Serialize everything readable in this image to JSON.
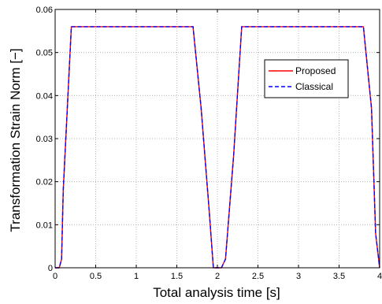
{
  "chart_data": {
    "type": "line",
    "xlabel": "Total analysis time [s]",
    "ylabel": "Transformation Strain Norm [−]",
    "xlim": [
      0,
      4
    ],
    "ylim": [
      0,
      0.06
    ],
    "xticks": [
      0,
      0.5,
      1,
      1.5,
      2,
      2.5,
      3,
      3.5,
      4
    ],
    "xtick_labels": [
      "0",
      "0.5",
      "1",
      "1.5",
      "2",
      "2.5",
      "3",
      "3.5",
      "4"
    ],
    "yticks": [
      0,
      0.01,
      0.02,
      0.03,
      0.04,
      0.05,
      0.06
    ],
    "ytick_labels": [
      "0",
      "0.01",
      "0.02",
      "0.03",
      "0.04",
      "0.05",
      "0.06"
    ],
    "grid": true,
    "legend_position": "right",
    "series": [
      {
        "name": "Proposed",
        "color": "#ff0000",
        "dash": "solid",
        "x": [
          0,
          0.05,
          0.08,
          0.1,
          0.2,
          1.7,
          1.8,
          1.9,
          1.95,
          2.0,
          2.05,
          2.1,
          2.2,
          2.3,
          3.8,
          3.9,
          3.95,
          4.0
        ],
        "y": [
          0,
          0,
          0.002,
          0.018,
          0.056,
          0.056,
          0.037,
          0.013,
          0,
          0,
          0,
          0.002,
          0.026,
          0.056,
          0.056,
          0.037,
          0.008,
          0
        ]
      },
      {
        "name": "Classical",
        "color": "#0000ff",
        "dash": "dashed",
        "x": [
          0,
          0.05,
          0.08,
          0.1,
          0.2,
          1.7,
          1.8,
          1.9,
          1.95,
          2.0,
          2.05,
          2.1,
          2.2,
          2.3,
          3.8,
          3.9,
          3.95,
          4.0
        ],
        "y": [
          0,
          0,
          0.002,
          0.018,
          0.056,
          0.056,
          0.037,
          0.013,
          0,
          0,
          0,
          0.002,
          0.026,
          0.056,
          0.056,
          0.037,
          0.008,
          0
        ]
      }
    ]
  }
}
